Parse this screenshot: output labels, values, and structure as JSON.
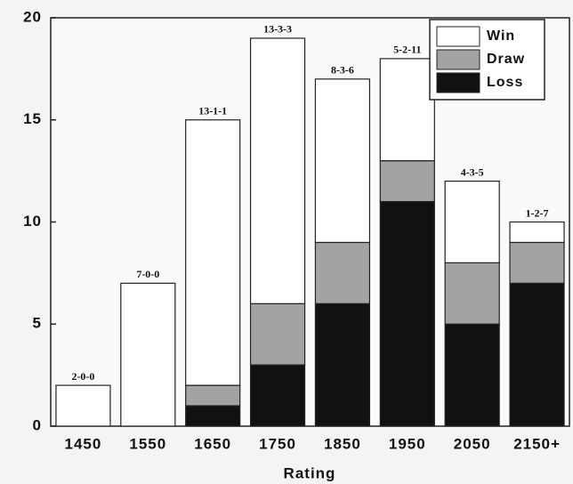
{
  "chart_data": {
    "type": "stacked_bar",
    "x_label": "Rating",
    "categories": [
      "1450",
      "1550",
      "1650",
      "1750",
      "1850",
      "1950",
      "2050",
      "2150+"
    ],
    "series": [
      {
        "name": "Loss",
        "color": "#111111",
        "values": [
          0,
          0,
          1,
          3,
          6,
          11,
          5,
          7
        ]
      },
      {
        "name": "Draw",
        "color": "#a3a3a3",
        "values": [
          0,
          0,
          1,
          3,
          3,
          2,
          3,
          2
        ]
      },
      {
        "name": "Win",
        "color": "#ffffff",
        "values": [
          2,
          7,
          13,
          13,
          8,
          5,
          4,
          1
        ]
      }
    ],
    "bar_labels": [
      "2-0-0",
      "7-0-0",
      "13-1-1",
      "13-3-3",
      "8-3-6",
      "5-2-11",
      "4-3-5",
      "1-2-7"
    ],
    "ylim": [
      0,
      20
    ],
    "yticks": [
      0,
      5,
      10,
      15,
      20
    ],
    "legend": "upper right"
  }
}
